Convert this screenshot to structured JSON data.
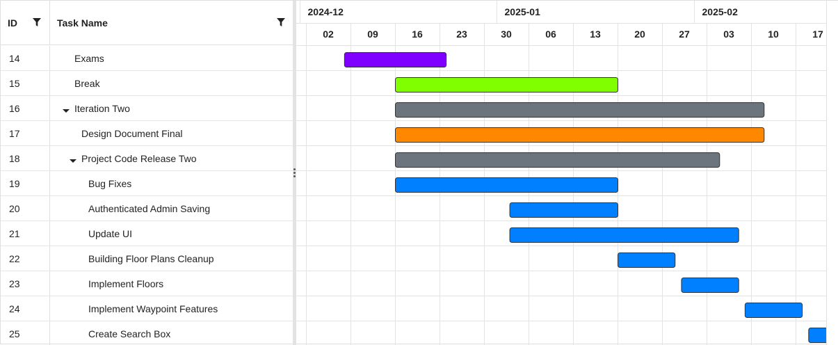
{
  "grid": {
    "columns": [
      {
        "key": "id",
        "label": "ID"
      },
      {
        "key": "name",
        "label": "Task Name"
      }
    ],
    "rows": [
      {
        "id": "14",
        "name": "Exams",
        "level": 1,
        "expandable": false
      },
      {
        "id": "15",
        "name": "Break",
        "level": 1,
        "expandable": false
      },
      {
        "id": "16",
        "name": "Iteration Two",
        "level": 1,
        "expandable": true,
        "expanded": true
      },
      {
        "id": "17",
        "name": "Design Document Final",
        "level": 2,
        "expandable": false
      },
      {
        "id": "18",
        "name": "Project Code Release Two",
        "level": 2,
        "expandable": true,
        "expanded": true
      },
      {
        "id": "19",
        "name": "Bug Fixes",
        "level": 3,
        "expandable": false
      },
      {
        "id": "20",
        "name": "Authenticated Admin Saving",
        "level": 3,
        "expandable": false
      },
      {
        "id": "21",
        "name": "Update UI",
        "level": 3,
        "expandable": false
      },
      {
        "id": "22",
        "name": "Building Floor Plans Cleanup",
        "level": 3,
        "expandable": false
      },
      {
        "id": "23",
        "name": "Implement Floors",
        "level": 3,
        "expandable": false
      },
      {
        "id": "24",
        "name": "Implement Waypoint Features",
        "level": 3,
        "expandable": false
      },
      {
        "id": "25",
        "name": "Create Search Box",
        "level": 3,
        "expandable": false
      }
    ]
  },
  "timeline": {
    "months": [
      "2024-12",
      "2025-01",
      "2025-02"
    ],
    "weeks": [
      "02",
      "09",
      "16",
      "23",
      "30",
      "06",
      "13",
      "20",
      "27",
      "03",
      "10",
      "17"
    ],
    "bars": [
      {
        "task": "14",
        "start": "2024-12-08",
        "end": "2024-12-24",
        "color": "#8000ff"
      },
      {
        "task": "15",
        "start": "2024-12-16",
        "end": "2025-01-20",
        "color": "#80ff00"
      },
      {
        "task": "16",
        "start": "2024-12-16",
        "end": "2025-02-12",
        "color": "#6c757d"
      },
      {
        "task": "17",
        "start": "2024-12-16",
        "end": "2025-02-12",
        "color": "#ff8800"
      },
      {
        "task": "18",
        "start": "2024-12-16",
        "end": "2025-02-05",
        "color": "#6c757d"
      },
      {
        "task": "19",
        "start": "2024-12-16",
        "end": "2025-01-20",
        "color": "#0080ff"
      },
      {
        "task": "20",
        "start": "2025-01-03",
        "end": "2025-01-20",
        "color": "#0080ff"
      },
      {
        "task": "21",
        "start": "2025-01-03",
        "end": "2025-02-08",
        "color": "#0080ff"
      },
      {
        "task": "22",
        "start": "2025-01-20",
        "end": "2025-01-29",
        "color": "#0080ff"
      },
      {
        "task": "23",
        "start": "2025-01-30",
        "end": "2025-02-08",
        "color": "#0080ff"
      },
      {
        "task": "24",
        "start": "2025-02-09",
        "end": "2025-02-18",
        "color": "#0080ff"
      },
      {
        "task": "25",
        "start": "2025-02-19",
        "end": "2025-02-28",
        "color": "#0080ff"
      }
    ]
  },
  "colors": {
    "grid_line": "#e3e3e3",
    "bar_border": "#333333"
  },
  "icons": {
    "filter": "filter-icon",
    "expand": "caret-down-icon",
    "splitter": "drag-handle-icon"
  }
}
